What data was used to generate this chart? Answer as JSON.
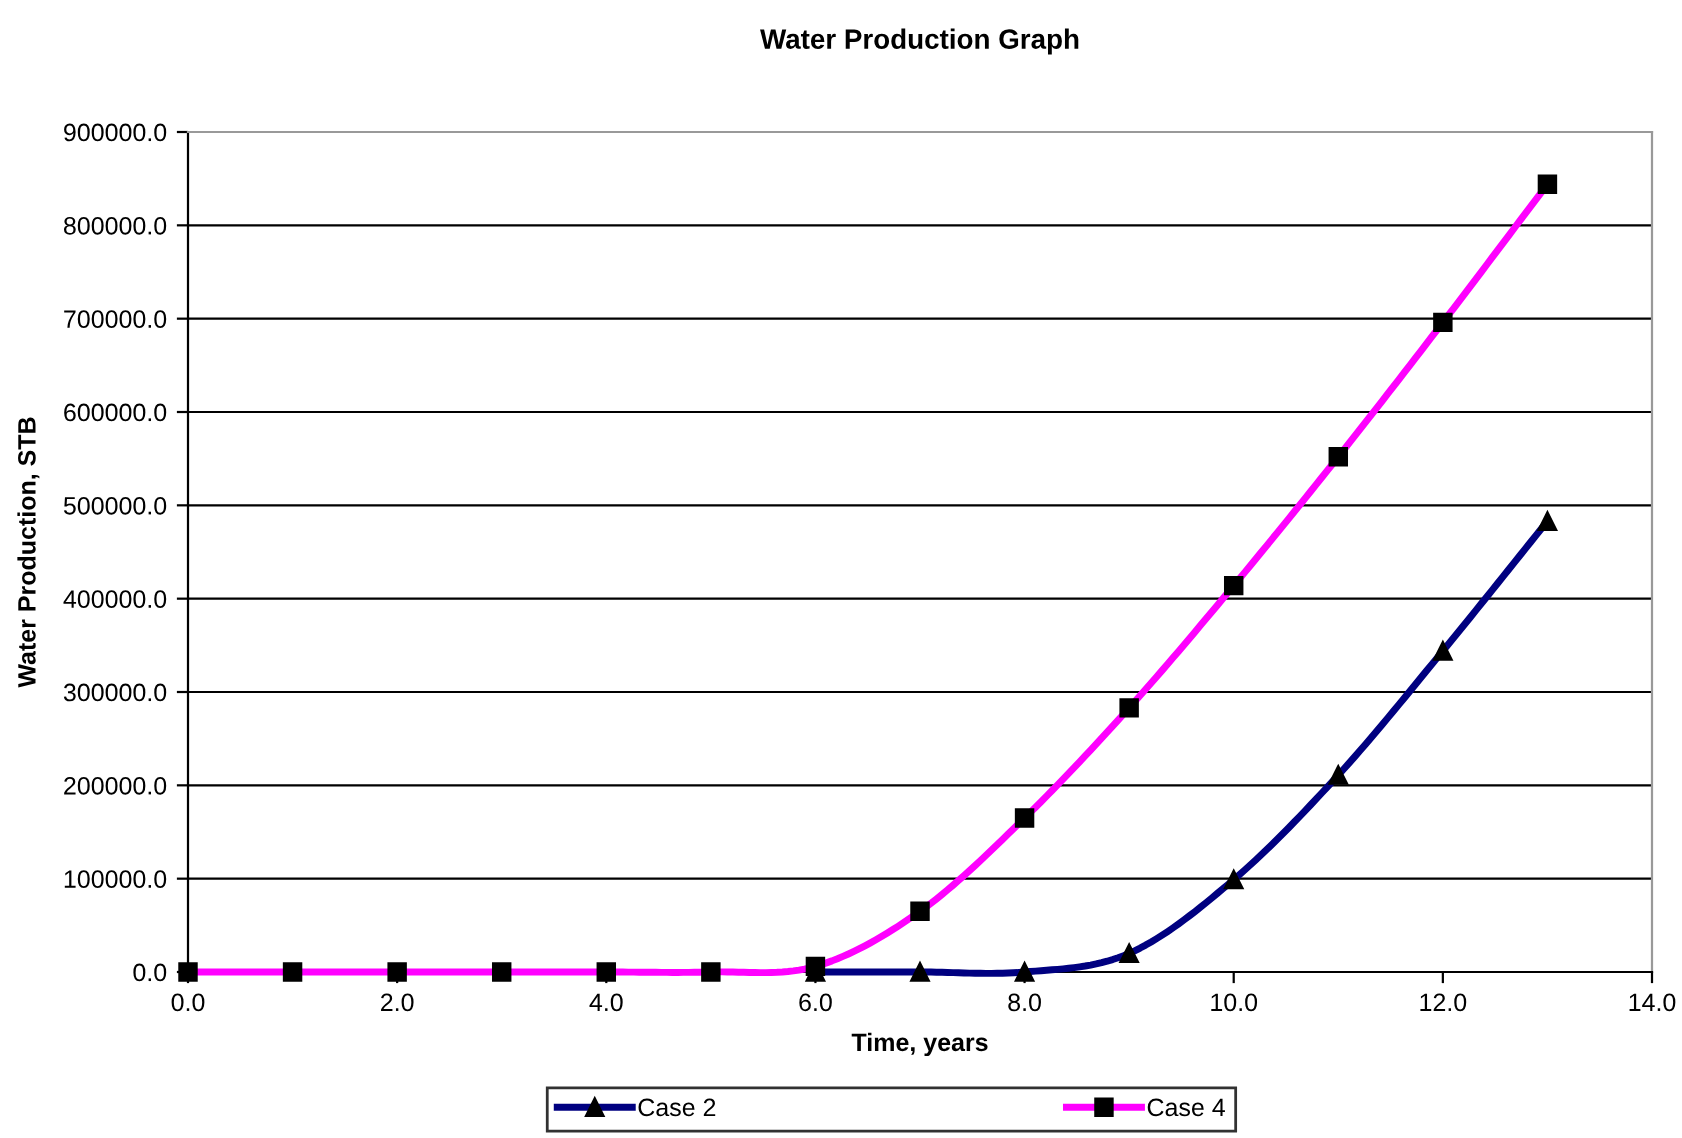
{
  "chart_data": {
    "type": "line",
    "title": "Water Production Graph",
    "xlabel": "Time, years",
    "ylabel": "Water Production, STB",
    "x": [
      0,
      1,
      2,
      3,
      4,
      5,
      6,
      7,
      8,
      9,
      10,
      11,
      12,
      13
    ],
    "series": [
      {
        "name": "Case 2",
        "color": "#000080",
        "marker": "triangle",
        "values": [
          null,
          null,
          null,
          null,
          null,
          null,
          0,
          0,
          0,
          20000,
          99000,
          211000,
          344000,
          483000
        ]
      },
      {
        "name": "Case 4",
        "color": "#ff00ff",
        "marker": "square",
        "values": [
          0,
          0,
          0,
          0,
          0,
          0,
          6000,
          65000,
          165000,
          283000,
          414000,
          552000,
          696000,
          844000
        ]
      }
    ],
    "xlim": [
      0,
      14
    ],
    "xticks": [
      {
        "value": 0,
        "label": "0.0"
      },
      {
        "value": 2,
        "label": "2.0"
      },
      {
        "value": 4,
        "label": "4.0"
      },
      {
        "value": 6,
        "label": "6.0"
      },
      {
        "value": 8,
        "label": "8.0"
      },
      {
        "value": 10,
        "label": "10.0"
      },
      {
        "value": 12,
        "label": "12.0"
      },
      {
        "value": 14,
        "label": "14.0"
      }
    ],
    "ylim": [
      0,
      900000
    ],
    "yticks": [
      {
        "value": 0,
        "label": "0.0"
      },
      {
        "value": 100000,
        "label": "100000.0"
      },
      {
        "value": 200000,
        "label": "200000.0"
      },
      {
        "value": 300000,
        "label": "300000.0"
      },
      {
        "value": 400000,
        "label": "400000.0"
      },
      {
        "value": 500000,
        "label": "500000.0"
      },
      {
        "value": 600000,
        "label": "600000.0"
      },
      {
        "value": 700000,
        "label": "700000.0"
      },
      {
        "value": 800000,
        "label": "800000.0"
      },
      {
        "value": 900000,
        "label": "900000.0"
      }
    ],
    "grid": "y",
    "legend": "bottom",
    "line_style": "solid"
  }
}
